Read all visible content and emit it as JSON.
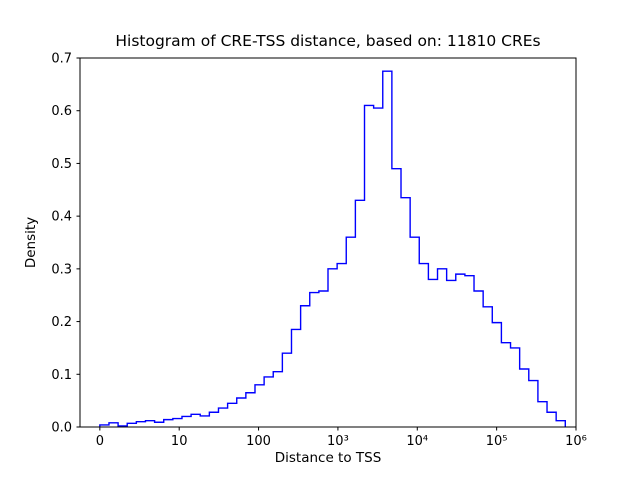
{
  "figure": {
    "background_color": "#ffffff",
    "frame_color": "#000000"
  },
  "chart_data": {
    "type": "bar",
    "subtype": "histogram-step",
    "title": "Histogram of CRE-TSS distance, based on: 11810 CREs",
    "xlabel": "Distance to TSS",
    "ylabel": "Density",
    "n_cres": 11810,
    "line_color": "#0000ff",
    "legend": "none",
    "grid": false,
    "x_scale": "symlog",
    "x_units_note": "axis units u: u=0 -> x=0, u=1 -> x=10, each +1 multiplies x by 10 (u=6 -> 1e6)",
    "x_axis_range_units": [
      -0.25,
      6.0
    ],
    "x_ticks": [
      {
        "u": 0,
        "label": "0"
      },
      {
        "u": 1,
        "label": "10"
      },
      {
        "u": 2,
        "label": "100"
      },
      {
        "u": 3,
        "label": "10³"
      },
      {
        "u": 4,
        "label": "10⁴"
      },
      {
        "u": 5,
        "label": "10⁵"
      },
      {
        "u": 6,
        "label": "10⁶"
      }
    ],
    "ylim": [
      0.0,
      0.7
    ],
    "y_ticks": [
      {
        "v": 0.0,
        "label": "0.0"
      },
      {
        "v": 0.1,
        "label": "0.1"
      },
      {
        "v": 0.2,
        "label": "0.2"
      },
      {
        "v": 0.3,
        "label": "0.3"
      },
      {
        "v": 0.4,
        "label": "0.4"
      },
      {
        "v": 0.5,
        "label": "0.5"
      },
      {
        "v": 0.6,
        "label": "0.6"
      },
      {
        "v": 0.7,
        "label": "0.7"
      }
    ],
    "bins": {
      "start_unit": 0.0,
      "width_unit": 0.115,
      "densities": [
        0.004,
        0.008,
        0.002,
        0.007,
        0.01,
        0.012,
        0.009,
        0.014,
        0.016,
        0.02,
        0.024,
        0.021,
        0.028,
        0.036,
        0.045,
        0.055,
        0.065,
        0.08,
        0.095,
        0.105,
        0.14,
        0.185,
        0.23,
        0.255,
        0.258,
        0.3,
        0.31,
        0.36,
        0.43,
        0.61,
        0.605,
        0.675,
        0.49,
        0.435,
        0.36,
        0.31,
        0.28,
        0.3,
        0.278,
        0.29,
        0.287,
        0.258,
        0.228,
        0.198,
        0.16,
        0.15,
        0.11,
        0.088,
        0.048,
        0.028,
        0.012
      ]
    }
  }
}
